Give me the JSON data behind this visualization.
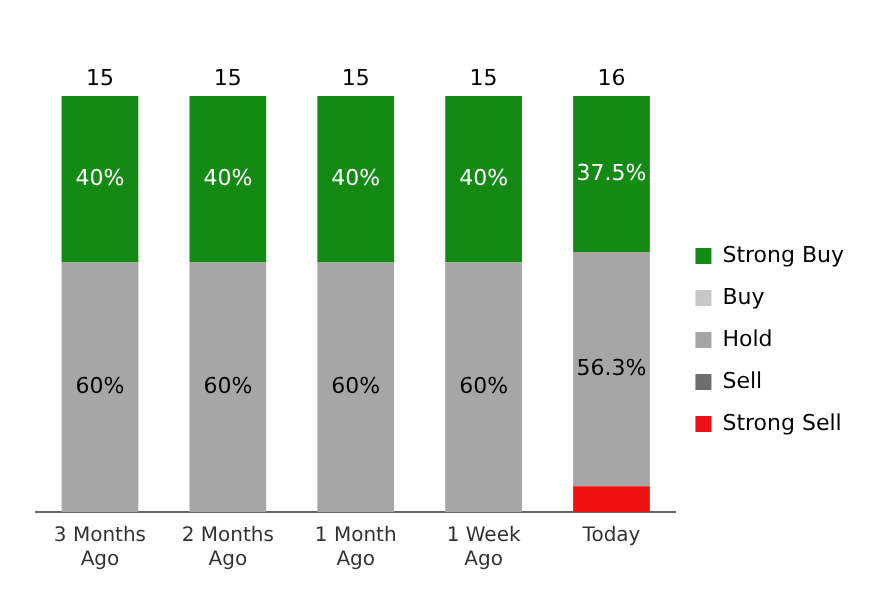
{
  "chart_data": {
    "type": "bar",
    "stacked": true,
    "categories": [
      "3 Months Ago",
      "2 Months Ago",
      "1 Month Ago",
      "1 Week Ago",
      "Today"
    ],
    "series": [
      {
        "name": "Strong Sell",
        "color": "#ee1111",
        "values": [
          0,
          0,
          0,
          0,
          6.2
        ],
        "value_labels": [
          null,
          null,
          null,
          null,
          null
        ]
      },
      {
        "name": "Sell",
        "color": "#6e6e6e",
        "values": [
          0,
          0,
          0,
          0,
          0
        ],
        "value_labels": [
          null,
          null,
          null,
          null,
          null
        ]
      },
      {
        "name": "Hold",
        "color": "#a6a6a6",
        "values": [
          60,
          60,
          60,
          60,
          56.3
        ],
        "value_labels": [
          "60%",
          "60%",
          "60%",
          "60%",
          "56.3%"
        ]
      },
      {
        "name": "Buy",
        "color": "#c8c8c8",
        "values": [
          0,
          0,
          0,
          0,
          0
        ],
        "value_labels": [
          null,
          null,
          null,
          null,
          null
        ]
      },
      {
        "name": "Strong Buy",
        "color": "#138a13",
        "values": [
          40,
          40,
          40,
          40,
          37.5
        ],
        "value_labels": [
          "40%",
          "40%",
          "40%",
          "40%",
          "37.5%"
        ]
      }
    ],
    "annotations": [
      {
        "text": "15",
        "x": "3 Months Ago",
        "y": 100
      },
      {
        "text": "15",
        "x": "2 Months Ago",
        "y": 100
      },
      {
        "text": "15",
        "x": "1 Month Ago",
        "y": 100
      },
      {
        "text": "15",
        "x": "1 Week Ago",
        "y": 100
      },
      {
        "text": "16",
        "x": "Today",
        "y": 100
      }
    ],
    "legend": "right",
    "grid": false
  }
}
